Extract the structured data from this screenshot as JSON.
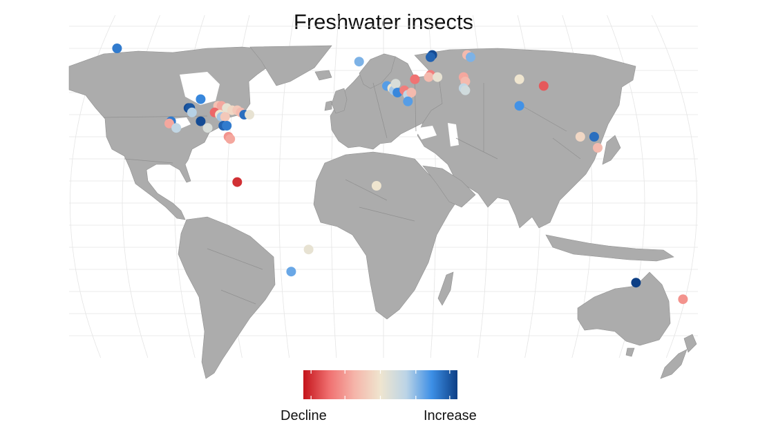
{
  "title": "Freshwater insects",
  "legend": {
    "low_label": "Decline",
    "high_label": "Increase",
    "gradient_colors": [
      "#c4141b",
      "#f07070",
      "#f5b5aa",
      "#efe5cf",
      "#bcd4e6",
      "#3d8fe6",
      "#0d3f85"
    ]
  },
  "colors": {
    "land": "#acacac",
    "borders": "#8f8f8f",
    "graticule": "#e4e4e4",
    "background": "#ffffff"
  },
  "sites": [
    {
      "lon": -153,
      "lat": 70,
      "trend": 0.75
    },
    {
      "lon": -105,
      "lat": 47,
      "trend": 0.7
    },
    {
      "lon": -95,
      "lat": 44,
      "trend": -0.25
    },
    {
      "lon": -93,
      "lat": 44,
      "trend": -0.4
    },
    {
      "lon": -90,
      "lat": 43,
      "trend": 0.05
    },
    {
      "lon": -87,
      "lat": 42,
      "trend": -0.1
    },
    {
      "lon": -84,
      "lat": 42,
      "trend": -0.2
    },
    {
      "lon": -82,
      "lat": 41,
      "trend": -0.3
    },
    {
      "lon": -80,
      "lat": 40,
      "trend": 0.8
    },
    {
      "lon": -77,
      "lat": 40,
      "trend": 0.05
    },
    {
      "lon": -112,
      "lat": 43,
      "trend": 0.95
    },
    {
      "lon": -111,
      "lat": 43,
      "trend": 0.9
    },
    {
      "lon": -110,
      "lat": 41,
      "trend": 0.35
    },
    {
      "lon": -97,
      "lat": 41,
      "trend": -0.7
    },
    {
      "lon": -94,
      "lat": 40,
      "trend": 0.0
    },
    {
      "lon": -93,
      "lat": 39,
      "trend": 0.4
    },
    {
      "lon": -91,
      "lat": 39,
      "trend": -0.2
    },
    {
      "lon": -105,
      "lat": 37,
      "trend": 0.95
    },
    {
      "lon": -122,
      "lat": 37,
      "trend": 0.75
    },
    {
      "lon": -123,
      "lat": 36,
      "trend": -0.4
    },
    {
      "lon": -119,
      "lat": 34,
      "trend": 0.3
    },
    {
      "lon": -101,
      "lat": 34,
      "trend": 0.15
    },
    {
      "lon": -92,
      "lat": 35,
      "trend": 0.85
    },
    {
      "lon": -90,
      "lat": 35,
      "trend": 0.75
    },
    {
      "lon": -89,
      "lat": 30,
      "trend": -0.5
    },
    {
      "lon": -88,
      "lat": 29,
      "trend": -0.4
    },
    {
      "lon": -84,
      "lat": 9.5,
      "trend": -0.9
    },
    {
      "lon": -14,
      "lat": 64,
      "trend": 0.5
    },
    {
      "lon": 2,
      "lat": 53,
      "trend": 0.6
    },
    {
      "lon": 5,
      "lat": 52,
      "trend": 0.0
    },
    {
      "lon": 6,
      "lat": 51,
      "trend": 0.4
    },
    {
      "lon": 7,
      "lat": 54,
      "trend": 0.15
    },
    {
      "lon": 8,
      "lat": 50,
      "trend": 0.7
    },
    {
      "lon": 12,
      "lat": 51,
      "trend": -0.6
    },
    {
      "lon": 14,
      "lat": 49,
      "trend": 0.3
    },
    {
      "lon": 16,
      "lat": 50,
      "trend": -0.3
    },
    {
      "lon": 14,
      "lat": 46,
      "trend": 0.6
    },
    {
      "lon": 18,
      "lat": 56,
      "trend": -0.65
    },
    {
      "lon": 28,
      "lat": 67,
      "trend": 0.95
    },
    {
      "lon": 27,
      "lat": 66,
      "trend": 0.85
    },
    {
      "lon": 27,
      "lat": 58,
      "trend": -0.6
    },
    {
      "lon": 26,
      "lat": 57,
      "trend": -0.3
    },
    {
      "lon": 31,
      "lat": 57,
      "trend": 0.05
    },
    {
      "lon": 48,
      "lat": 67,
      "trend": -0.3
    },
    {
      "lon": 50,
      "lat": 66,
      "trend": 0.5
    },
    {
      "lon": 46,
      "lat": 57,
      "trend": -0.4
    },
    {
      "lon": 47,
      "lat": 55,
      "trend": -0.3
    },
    {
      "lon": 46,
      "lat": 52,
      "trend": 0.3
    },
    {
      "lon": 47,
      "lat": 51,
      "trend": 0.2
    },
    {
      "lon": 78,
      "lat": 56,
      "trend": 0.0
    },
    {
      "lon": 92,
      "lat": 53,
      "trend": -0.75
    },
    {
      "lon": 78,
      "lat": 44,
      "trend": 0.65
    },
    {
      "lon": 113,
      "lat": 30,
      "trend": -0.1
    },
    {
      "lon": 121,
      "lat": 30,
      "trend": 0.8
    },
    {
      "lon": 123,
      "lat": 25,
      "trend": -0.3
    },
    {
      "lon": -4,
      "lat": 7.8,
      "trend": 0.0
    },
    {
      "lon": -43,
      "lat": -21,
      "trend": 0.05
    },
    {
      "lon": -53,
      "lat": -31,
      "trend": 0.55
    },
    {
      "lon": 145,
      "lat": -36,
      "trend": 1.0
    },
    {
      "lon": 172,
      "lat": -43.5,
      "trend": -0.5
    }
  ]
}
